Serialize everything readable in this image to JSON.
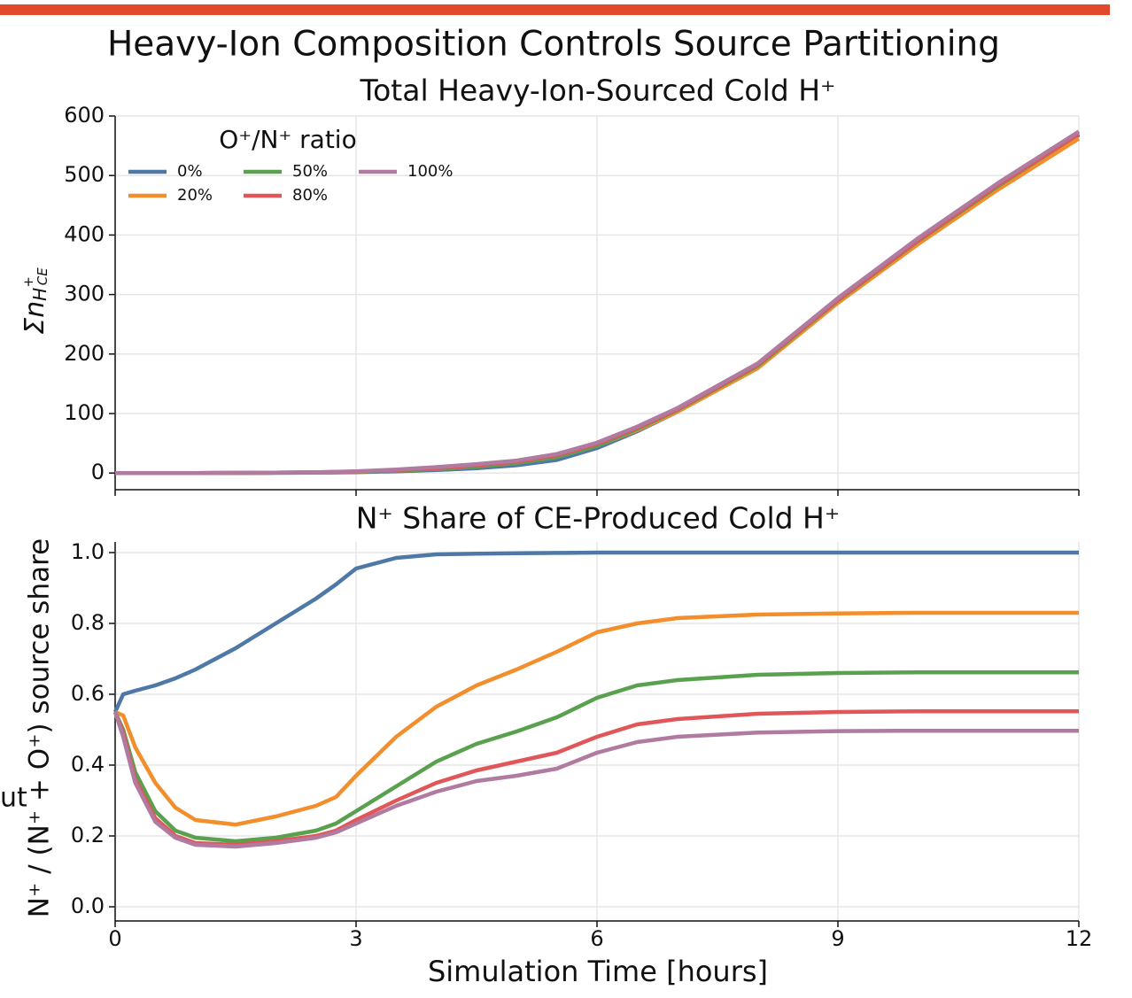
{
  "figure_title": "Heavy-Ion Composition Controls Source Partitioning",
  "fragment": "ut",
  "chart_data": [
    {
      "type": "line",
      "title": "Total Heavy-Ion-Sourced Cold H⁺",
      "ylabel": [
        "Σn",
        "H",
        "+",
        "CE"
      ],
      "x": [
        0,
        0.1,
        0.25,
        0.5,
        0.75,
        1,
        1.5,
        2,
        2.5,
        2.75,
        3,
        3.5,
        4,
        4.5,
        5,
        5.5,
        6,
        6.5,
        7,
        8,
        9,
        10,
        11,
        12
      ],
      "xlim": [
        0,
        12
      ],
      "xticks": [
        0,
        3,
        6,
        9,
        12
      ],
      "show_xtick_labels": false,
      "ylim": [
        -28,
        600
      ],
      "yticks": [
        0,
        100,
        200,
        300,
        400,
        500,
        600
      ],
      "grid": true,
      "legend": {
        "title": "O⁺/N⁺ ratio",
        "loc": "upper left",
        "ncol": 3
      },
      "series": [
        {
          "name": "0%",
          "color": "#4e79a7",
          "values": [
            0,
            0,
            0,
            0,
            0,
            0,
            0.1,
            0.3,
            0.7,
            1,
            1.5,
            3,
            5,
            8,
            13,
            22,
            42,
            70,
            103,
            178,
            290,
            390,
            483,
            568
          ]
        },
        {
          "name": "20%",
          "color": "#f28e2b",
          "values": [
            0,
            0,
            0,
            0,
            0,
            0,
            0.2,
            0.5,
            1,
            1.5,
            2,
            4,
            7,
            11,
            17,
            27,
            46,
            72,
            103,
            176,
            286,
            385,
            477,
            562
          ]
        },
        {
          "name": "50%",
          "color": "#59a14f",
          "values": [
            0,
            0,
            0,
            0,
            0,
            0,
            0.2,
            0.5,
            1,
            1.5,
            2,
            4,
            7,
            11,
            17,
            27,
            46,
            74,
            106,
            180,
            290,
            390,
            483,
            570
          ]
        },
        {
          "name": "80%",
          "color": "#e15759",
          "values": [
            0,
            0,
            0,
            0,
            0,
            0,
            0.3,
            0.6,
            1.2,
            1.8,
            2.5,
            5,
            8,
            13,
            19,
            30,
            49,
            76,
            107,
            182,
            291,
            391,
            485,
            570
          ]
        },
        {
          "name": "100%",
          "color": "#b07aa1",
          "values": [
            0,
            0,
            0,
            0,
            0,
            0,
            0.3,
            0.7,
            1.4,
            2,
            3,
            6,
            10,
            15,
            21,
            32,
            51,
            78,
            109,
            184,
            294,
            395,
            488,
            574
          ]
        }
      ]
    },
    {
      "type": "line",
      "title": "N⁺ Share of CE-Produced Cold H⁺",
      "ylabel": "N⁺ / (N⁺ + O⁺) source share",
      "xlabel": "Simulation Time [hours]",
      "x": [
        0,
        0.1,
        0.25,
        0.5,
        0.75,
        1,
        1.5,
        2,
        2.5,
        2.75,
        3,
        3.5,
        4,
        4.5,
        5,
        5.5,
        6,
        6.5,
        7,
        8,
        9,
        10,
        11,
        12
      ],
      "xlim": [
        0,
        12
      ],
      "xticks": [
        0,
        3,
        6,
        9,
        12
      ],
      "show_xtick_labels": true,
      "ylim": [
        -0.04,
        1.03
      ],
      "yticks": [
        {
          "value": 0,
          "label": "0.0"
        },
        0.2,
        0.4,
        0.6,
        0.8,
        {
          "value": 1,
          "label": "1.0"
        }
      ],
      "grid": true,
      "series": [
        {
          "name": "0%",
          "color": "#4e79a7",
          "values": [
            0.55,
            0.6,
            0.61,
            0.625,
            0.645,
            0.67,
            0.73,
            0.8,
            0.87,
            0.91,
            0.955,
            0.985,
            0.995,
            0.997,
            0.998,
            0.999,
            1,
            1,
            1,
            1,
            1,
            1,
            1,
            1
          ]
        },
        {
          "name": "20%",
          "color": "#f28e2b",
          "values": [
            0.55,
            0.54,
            0.45,
            0.35,
            0.28,
            0.245,
            0.232,
            0.255,
            0.285,
            0.31,
            0.37,
            0.48,
            0.565,
            0.625,
            0.67,
            0.72,
            0.775,
            0.8,
            0.815,
            0.825,
            0.828,
            0.83,
            0.83,
            0.83
          ]
        },
        {
          "name": "50%",
          "color": "#59a14f",
          "values": [
            0.55,
            0.5,
            0.38,
            0.27,
            0.215,
            0.195,
            0.185,
            0.195,
            0.215,
            0.235,
            0.27,
            0.34,
            0.41,
            0.46,
            0.495,
            0.535,
            0.59,
            0.625,
            0.64,
            0.655,
            0.66,
            0.662,
            0.662,
            0.662
          ]
        },
        {
          "name": "80%",
          "color": "#e15759",
          "values": [
            0.55,
            0.49,
            0.36,
            0.25,
            0.2,
            0.18,
            0.175,
            0.185,
            0.2,
            0.215,
            0.245,
            0.3,
            0.35,
            0.385,
            0.41,
            0.435,
            0.48,
            0.515,
            0.53,
            0.545,
            0.55,
            0.552,
            0.552,
            0.552
          ]
        },
        {
          "name": "100%",
          "color": "#b07aa1",
          "values": [
            0.55,
            0.48,
            0.35,
            0.24,
            0.195,
            0.175,
            0.17,
            0.18,
            0.195,
            0.21,
            0.235,
            0.285,
            0.325,
            0.355,
            0.37,
            0.39,
            0.435,
            0.465,
            0.48,
            0.492,
            0.496,
            0.497,
            0.497,
            0.497
          ]
        }
      ]
    }
  ]
}
